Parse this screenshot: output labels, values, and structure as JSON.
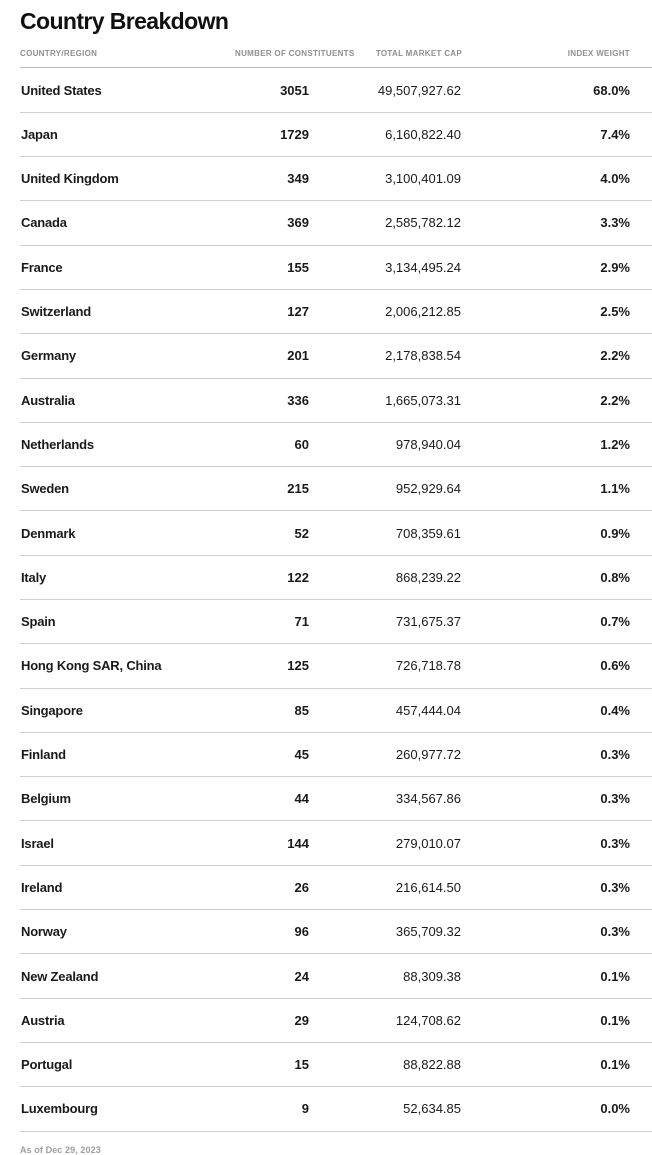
{
  "page": {
    "title": "Country Breakdown",
    "footnote": "As of Dec 29, 2023"
  },
  "colors": {
    "background": "#ffffff",
    "text": "#1a1a1a",
    "muted_header": "#8f8f8f",
    "footnote": "#9e9e9e",
    "row_border": "#cfcfcf",
    "header_border": "#b9b9b9"
  },
  "table": {
    "columns": [
      "COUNTRY/REGION",
      "NUMBER OF CONSTITUENTS",
      "TOTAL MARKET CAP",
      "INDEX WEIGHT"
    ],
    "rows": [
      {
        "country": "United States",
        "constituents": "3051",
        "market_cap": "49,507,927.62",
        "weight": "68.0%"
      },
      {
        "country": "Japan",
        "constituents": "1729",
        "market_cap": "6,160,822.40",
        "weight": "7.4%"
      },
      {
        "country": "United Kingdom",
        "constituents": "349",
        "market_cap": "3,100,401.09",
        "weight": "4.0%"
      },
      {
        "country": "Canada",
        "constituents": "369",
        "market_cap": "2,585,782.12",
        "weight": "3.3%"
      },
      {
        "country": "France",
        "constituents": "155",
        "market_cap": "3,134,495.24",
        "weight": "2.9%"
      },
      {
        "country": "Switzerland",
        "constituents": "127",
        "market_cap": "2,006,212.85",
        "weight": "2.5%"
      },
      {
        "country": "Germany",
        "constituents": "201",
        "market_cap": "2,178,838.54",
        "weight": "2.2%"
      },
      {
        "country": "Australia",
        "constituents": "336",
        "market_cap": "1,665,073.31",
        "weight": "2.2%"
      },
      {
        "country": "Netherlands",
        "constituents": "60",
        "market_cap": "978,940.04",
        "weight": "1.2%"
      },
      {
        "country": "Sweden",
        "constituents": "215",
        "market_cap": "952,929.64",
        "weight": "1.1%"
      },
      {
        "country": "Denmark",
        "constituents": "52",
        "market_cap": "708,359.61",
        "weight": "0.9%"
      },
      {
        "country": "Italy",
        "constituents": "122",
        "market_cap": "868,239.22",
        "weight": "0.8%"
      },
      {
        "country": "Spain",
        "constituents": "71",
        "market_cap": "731,675.37",
        "weight": "0.7%"
      },
      {
        "country": "Hong Kong SAR, China",
        "constituents": "125",
        "market_cap": "726,718.78",
        "weight": "0.6%"
      },
      {
        "country": "Singapore",
        "constituents": "85",
        "market_cap": "457,444.04",
        "weight": "0.4%"
      },
      {
        "country": "Finland",
        "constituents": "45",
        "market_cap": "260,977.72",
        "weight": "0.3%"
      },
      {
        "country": "Belgium",
        "constituents": "44",
        "market_cap": "334,567.86",
        "weight": "0.3%"
      },
      {
        "country": "Israel",
        "constituents": "144",
        "market_cap": "279,010.07",
        "weight": "0.3%"
      },
      {
        "country": "Ireland",
        "constituents": "26",
        "market_cap": "216,614.50",
        "weight": "0.3%"
      },
      {
        "country": "Norway",
        "constituents": "96",
        "market_cap": "365,709.32",
        "weight": "0.3%"
      },
      {
        "country": "New Zealand",
        "constituents": "24",
        "market_cap": "88,309.38",
        "weight": "0.1%"
      },
      {
        "country": "Austria",
        "constituents": "29",
        "market_cap": "124,708.62",
        "weight": "0.1%"
      },
      {
        "country": "Portugal",
        "constituents": "15",
        "market_cap": "88,822.88",
        "weight": "0.1%"
      },
      {
        "country": "Luxembourg",
        "constituents": "9",
        "market_cap": "52,634.85",
        "weight": "0.0%"
      }
    ]
  }
}
